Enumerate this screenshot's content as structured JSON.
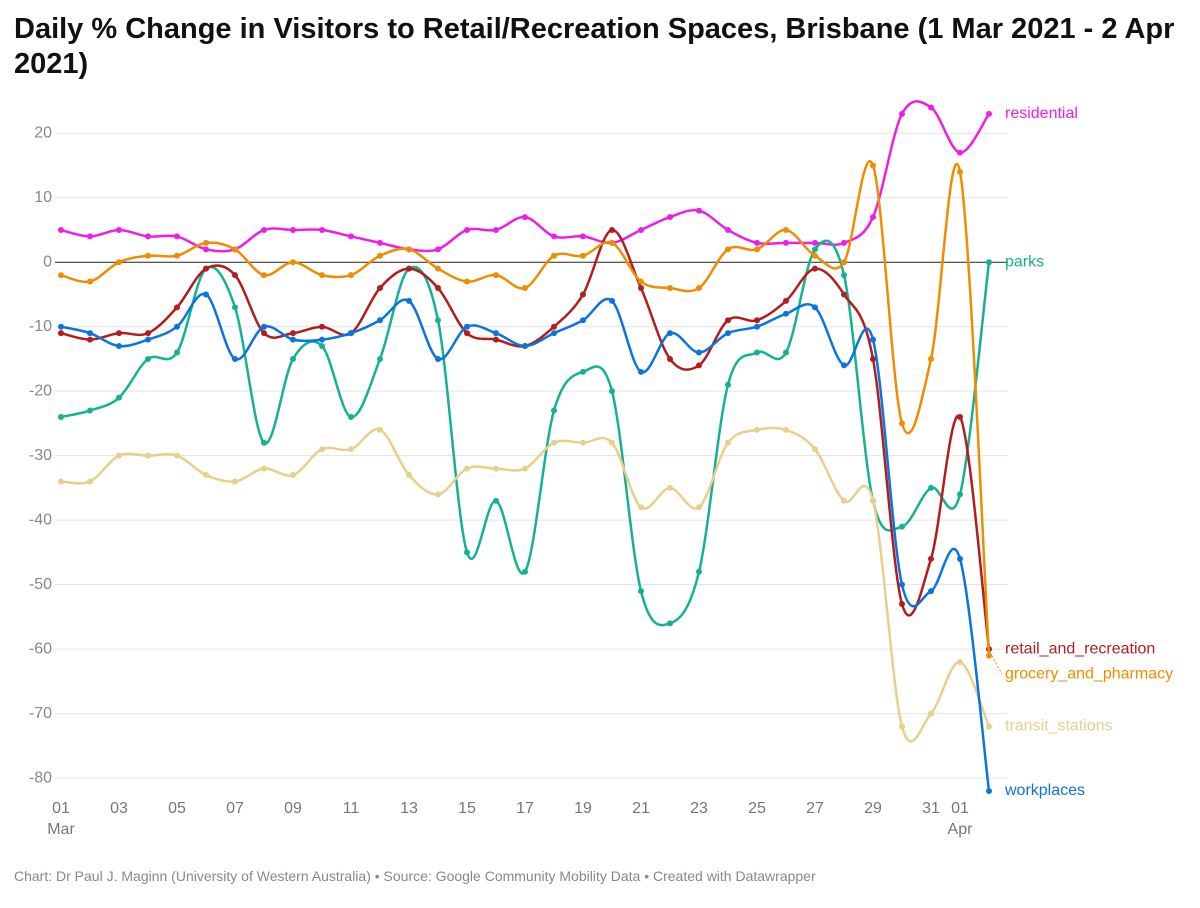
{
  "chart_data": {
    "type": "line",
    "title": "Daily % Change in Visitors to Retail/Recreation Spaces, Brisbane (1 Mar 2021 - 2 Apr 2021)",
    "footer": "Chart: Dr Paul J. Maginn (University of Western Australia) • Source: Google Community Mobility Data • Created with Datawrapper",
    "categories": [
      "01\nMar",
      null,
      "03",
      null,
      "05",
      null,
      "07",
      null,
      "09",
      null,
      "11",
      null,
      "13",
      null,
      "15",
      null,
      "17",
      null,
      "19",
      null,
      "21",
      null,
      "23",
      null,
      "25",
      null,
      "27",
      null,
      "29",
      null,
      "31",
      "01\nApr",
      null
    ],
    "ylim": [
      -82,
      25
    ],
    "yticks": [
      20,
      10,
      0,
      -10,
      -20,
      -30,
      -40,
      -50,
      -60,
      -70,
      -80
    ],
    "grid": true,
    "series": [
      {
        "name": "residential",
        "color": "#ee1ee6",
        "values": [
          5,
          4,
          5,
          4,
          4,
          2,
          2,
          5,
          5,
          5,
          4,
          3,
          2,
          2,
          5,
          5,
          7,
          4,
          4,
          3,
          5,
          7,
          8,
          5,
          3,
          3,
          3,
          3,
          7,
          23,
          24,
          17,
          23
        ]
      },
      {
        "name": "parks",
        "color": "#14b294",
        "values": [
          -24,
          -23,
          -21,
          -15,
          -14,
          -1,
          -7,
          -28,
          -15,
          -13,
          -24,
          -15,
          -1,
          -9,
          -45,
          -37,
          -48,
          -23,
          -17,
          -20,
          -51,
          -56,
          -48,
          -19,
          -14,
          -14,
          2,
          -2,
          -37,
          -41,
          -35,
          -36,
          0
        ]
      },
      {
        "name": "retail_and_recreation",
        "color": "#b31d1d",
        "values": [
          -11,
          -12,
          -11,
          -11,
          -7,
          -1,
          -2,
          -11,
          -11,
          -10,
          -11,
          -4,
          -1,
          -4,
          -11,
          -12,
          -13,
          -10,
          -5,
          5,
          -4,
          -15,
          -16,
          -9,
          -9,
          -6,
          -1,
          -5,
          -15,
          -53,
          -46,
          -24,
          -60
        ]
      },
      {
        "name": "grocery_and_pharmacy",
        "color": "#f08c00",
        "values": [
          -2,
          -3,
          0,
          1,
          1,
          3,
          2,
          -2,
          0,
          -2,
          -2,
          1,
          2,
          -1,
          -3,
          -2,
          -4,
          1,
          1,
          3,
          -3,
          -4,
          -4,
          2,
          2,
          5,
          1,
          0,
          15,
          -25,
          -15,
          14,
          -61
        ]
      },
      {
        "name": "transit_stations",
        "color": "#e8cf8a",
        "values": [
          -34,
          -34,
          -30,
          -30,
          -30,
          -33,
          -34,
          -32,
          -33,
          -29,
          -29,
          -26,
          -33,
          -36,
          -32,
          -32,
          -32,
          -28,
          -28,
          -28,
          -38,
          -35,
          -38,
          -28,
          -26,
          -26,
          -29,
          -37,
          -37,
          -72,
          -70,
          -62,
          -72
        ]
      },
      {
        "name": "workplaces",
        "color": "#0a74e0",
        "values": [
          -10,
          -11,
          -13,
          -12,
          -10,
          -5,
          -15,
          -10,
          -12,
          -12,
          -11,
          -9,
          -6,
          -15,
          -10,
          -11,
          -13,
          -11,
          -9,
          -6,
          -17,
          -11,
          -14,
          -11,
          -10,
          -8,
          -7,
          -16,
          -12,
          -50,
          -51,
          -46,
          -82
        ]
      }
    ]
  }
}
